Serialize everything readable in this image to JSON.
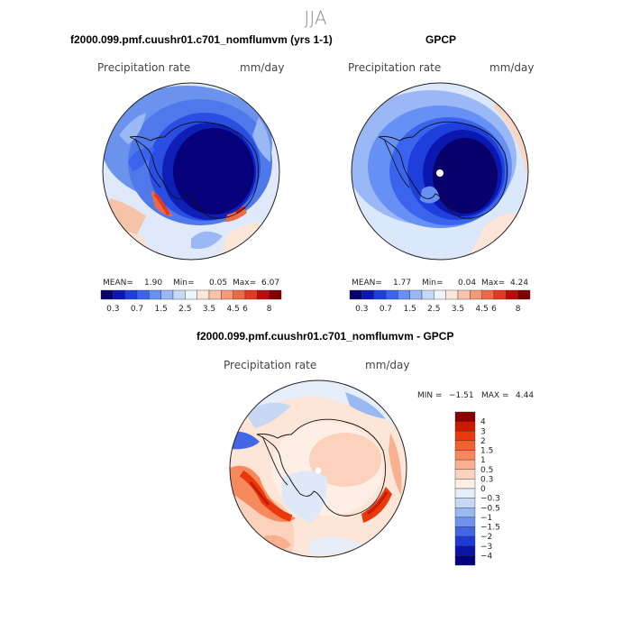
{
  "figure": {
    "season": "JJA"
  },
  "panels": {
    "model": {
      "title": "f2000.099.pmf.cuushr01.c701_nomflumvm (yrs 1-1)",
      "variable": "Precipitation rate",
      "units": "mm/day",
      "mean_label": "MEAN=",
      "mean": "1.90",
      "min_label": "Min=",
      "min": "0.05",
      "max_label": "Max=",
      "max": "6.07"
    },
    "obs": {
      "title": "GPCP",
      "variable": "Precipitation rate",
      "units": "mm/day",
      "mean_label": "MEAN=",
      "mean": "1.77",
      "min_label": "Min=",
      "min": "0.04",
      "max_label": "Max=",
      "max": "4.24"
    },
    "diff": {
      "title": "f2000.099.pmf.cuushr01.c701_nomflumvm - GPCP",
      "variable": "Precipitation rate",
      "units": "mm/day",
      "min_label": "MIN =",
      "min": "−1.51",
      "max_label": "MAX =",
      "max": "4.44"
    }
  },
  "colorbars": {
    "precip": {
      "colors": [
        "#08006b",
        "#0a18b0",
        "#1f3fdc",
        "#3a64ee",
        "#6690f4",
        "#9ab8f6",
        "#c6daf8",
        "#eef4fb",
        "#fde6d8",
        "#f9c4aa",
        "#f49a78",
        "#ee6a46",
        "#e23a20",
        "#b80e0a",
        "#800000"
      ],
      "ticks": [
        "0.3",
        "0.7",
        "1.5",
        "2.5",
        "3.5",
        "4.5",
        "6",
        "8"
      ]
    },
    "diff": {
      "colors": [
        "#8a0000",
        "#c81a00",
        "#e8380c",
        "#f26230",
        "#f68a5c",
        "#f9b08e",
        "#fcd2bc",
        "#fdeee6",
        "#e6eefa",
        "#c6d8f4",
        "#9ab8f2",
        "#6e92ee",
        "#4266e6",
        "#1e3ad6",
        "#0a14a8",
        "#000080"
      ],
      "ticks": [
        "4",
        "3",
        "2",
        "1.5",
        "1",
        "0.5",
        "0.3",
        "0",
        "−0.3",
        "−0.5",
        "−1",
        "−1.5",
        "−2",
        "−3",
        "−4"
      ]
    }
  }
}
